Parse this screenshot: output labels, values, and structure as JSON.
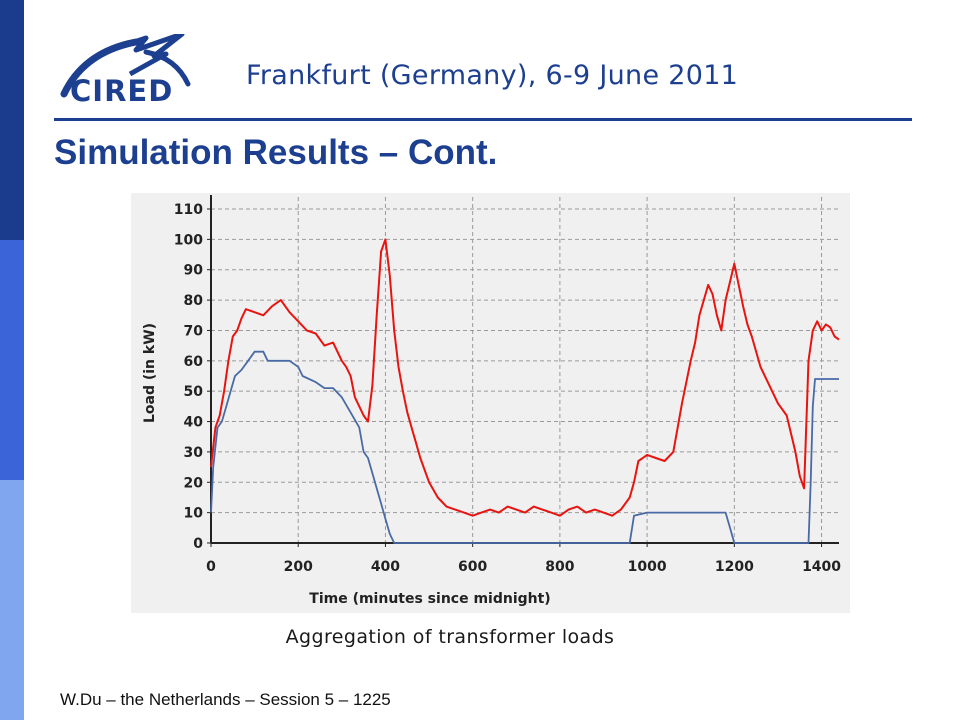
{
  "header": {
    "logo_text": "CIRED",
    "conference": "Frankfurt (Germany), 6-9 June 2011"
  },
  "slide": {
    "title": "Simulation Results – Cont.",
    "caption": "Aggregation of transformer loads",
    "footer": "W.Du – the Netherlands – Session 5 – 1225"
  },
  "colors": {
    "brand": "#1d3f8f",
    "series_red": "#e8140f",
    "series_blue": "#4a6aa6",
    "chart_bg": "#f0f0f0"
  },
  "chart_data": {
    "type": "line",
    "title": "",
    "xlabel": "Time (minutes since midnight)",
    "ylabel": "Load (in kW)",
    "xlim": [
      0,
      1440
    ],
    "ylim": [
      0,
      110
    ],
    "x_ticks": [
      0,
      200,
      400,
      600,
      800,
      1000,
      1200,
      1400
    ],
    "y_ticks": [
      0,
      10,
      20,
      30,
      40,
      50,
      60,
      70,
      80,
      90,
      100,
      110
    ],
    "grid": true,
    "series": [
      {
        "color": "#e8140f",
        "x": [
          0,
          10,
          20,
          30,
          40,
          50,
          60,
          70,
          80,
          100,
          120,
          140,
          160,
          180,
          200,
          220,
          240,
          260,
          280,
          300,
          310,
          320,
          330,
          340,
          350,
          360,
          370,
          380,
          390,
          400,
          410,
          420,
          430,
          440,
          450,
          460,
          470,
          480,
          500,
          520,
          540,
          560,
          580,
          600,
          620,
          640,
          660,
          680,
          700,
          720,
          740,
          760,
          780,
          800,
          820,
          840,
          860,
          880,
          900,
          920,
          940,
          960,
          970,
          980,
          990,
          1000,
          1020,
          1040,
          1060,
          1080,
          1100,
          1110,
          1120,
          1130,
          1140,
          1150,
          1160,
          1170,
          1180,
          1190,
          1200,
          1210,
          1220,
          1230,
          1240,
          1260,
          1280,
          1300,
          1320,
          1340,
          1350,
          1360,
          1370,
          1380,
          1390,
          1400,
          1410,
          1420,
          1430,
          1440
        ],
        "values": [
          25,
          38,
          42,
          50,
          60,
          68,
          70,
          74,
          77,
          76,
          75,
          78,
          80,
          76,
          73,
          70,
          69,
          65,
          66,
          60,
          58,
          55,
          48,
          45,
          42,
          40,
          52,
          75,
          96,
          100,
          88,
          70,
          58,
          50,
          43,
          38,
          33,
          28,
          20,
          15,
          12,
          11,
          10,
          9,
          10,
          11,
          10,
          12,
          11,
          10,
          12,
          11,
          10,
          9,
          11,
          12,
          10,
          11,
          10,
          9,
          11,
          15,
          20,
          27,
          28,
          29,
          28,
          27,
          30,
          46,
          60,
          66,
          75,
          80,
          85,
          82,
          75,
          70,
          80,
          86,
          92,
          85,
          78,
          72,
          68,
          58,
          52,
          46,
          42,
          30,
          22,
          18,
          60,
          70,
          73,
          70,
          72,
          71,
          68,
          67
        ]
      },
      {
        "color": "#4a6aa6",
        "x": [
          0,
          5,
          15,
          25,
          35,
          45,
          55,
          70,
          85,
          100,
          120,
          130,
          180,
          200,
          210,
          240,
          260,
          280,
          300,
          320,
          340,
          350,
          360,
          370,
          380,
          390,
          400,
          410,
          420,
          960,
          970,
          1000,
          1180,
          1190,
          1200,
          1210,
          1360,
          1370,
          1375,
          1380,
          1385,
          1440
        ],
        "values": [
          10,
          25,
          38,
          40,
          45,
          50,
          55,
          57,
          60,
          63,
          63,
          60,
          60,
          58,
          55,
          53,
          51,
          51,
          48,
          43,
          38,
          30,
          28,
          23,
          18,
          13,
          8,
          3,
          0,
          0,
          9,
          10,
          10,
          5,
          0,
          0,
          0,
          0,
          20,
          45,
          54,
          54
        ]
      }
    ]
  }
}
